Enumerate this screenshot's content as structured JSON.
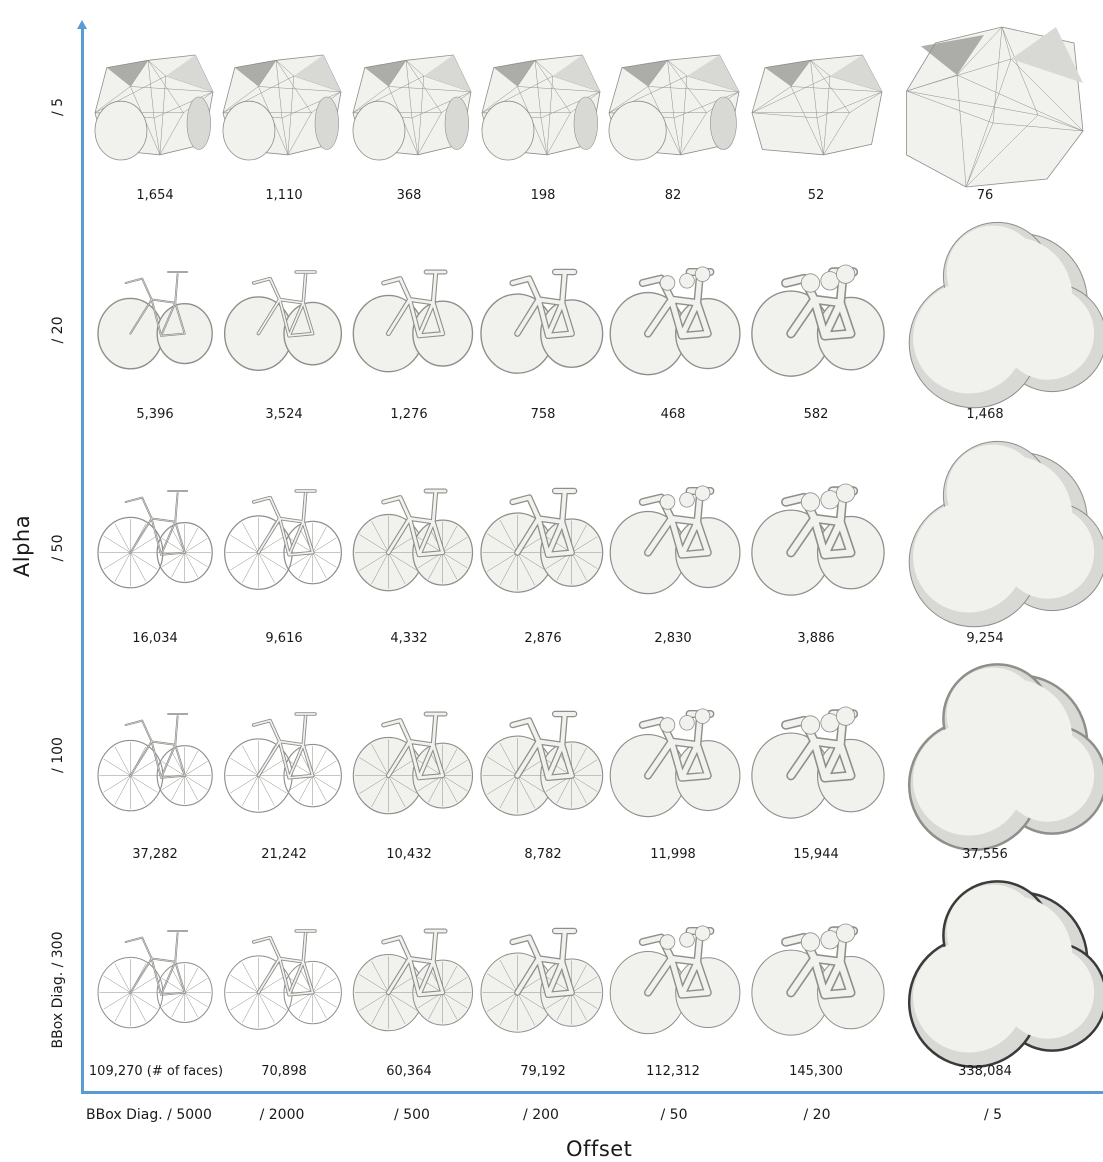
{
  "axes": {
    "x_title": "Offset",
    "y_title": "Alpha"
  },
  "columns": [
    "BBox Diag. / 5000",
    "/ 2000",
    "/ 500",
    "/ 200",
    "/ 50",
    "/ 20",
    "/ 5"
  ],
  "rows": [
    {
      "label": "/ 5",
      "counts": [
        "1,654",
        "1,110",
        "368",
        "198",
        "82",
        "52",
        "76"
      ]
    },
    {
      "label": "/ 20",
      "counts": [
        "5,396",
        "3,524",
        "1,276",
        "758",
        "468",
        "582",
        "1,468"
      ]
    },
    {
      "label": "/ 50",
      "counts": [
        "16,034",
        "9,616",
        "4,332",
        "2,876",
        "2,830",
        "3,886",
        "9,254"
      ]
    },
    {
      "label": "/ 100",
      "counts": [
        "37,282",
        "21,242",
        "10,432",
        "8,782",
        "11,998",
        "15,944",
        "37,556"
      ]
    },
    {
      "label": "BBox Diag. / 300",
      "counts": [
        "109,270 (# of faces)",
        "70,898",
        "60,364",
        "79,192",
        "112,312",
        "145,300",
        "338,084"
      ]
    }
  ],
  "colors": {
    "axis": "#5b9bd5",
    "mesh_light": "#f1f2ee",
    "mesh_mid": "#d8d9d5",
    "mesh_dark": "#8e8f8b"
  }
}
